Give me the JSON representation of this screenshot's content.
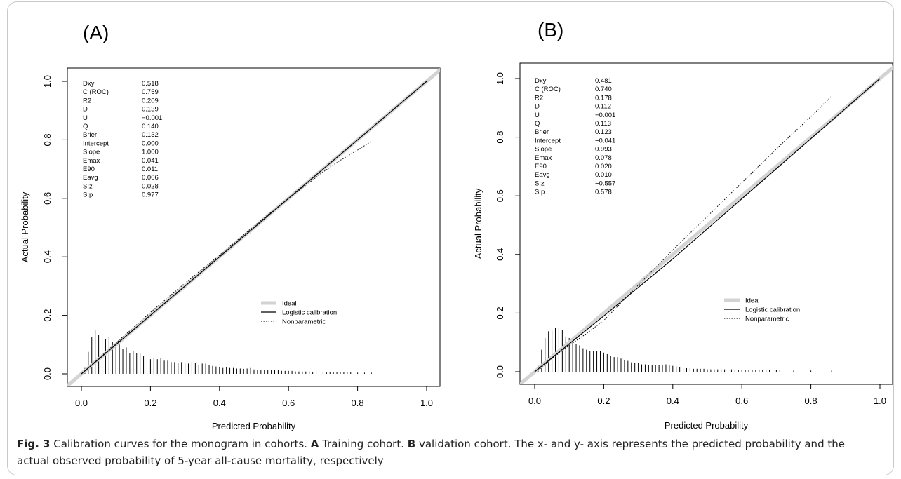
{
  "figure": {
    "caption_prefix": "Fig. 3",
    "caption_segments": [
      {
        "text": " Calibration curves for the monogram in cohorts. ",
        "bold": false
      },
      {
        "text": "A",
        "bold": true
      },
      {
        "text": " Training cohort. ",
        "bold": false
      },
      {
        "text": "B",
        "bold": true
      },
      {
        "text": " validation cohort. The x- and y- axis represents the predicted probability and the actual observed probability of 5-year all-cause mortality, respectively",
        "bold": false
      }
    ]
  },
  "colors": {
    "ideal": "#d3d3d3",
    "logistic": "#000000",
    "nonparametric": "#000000",
    "frame": "#000000"
  },
  "chart_data": [
    {
      "panel_label": "(A)",
      "type": "line",
      "xlabel": "Predicted Probability",
      "ylabel": "Actual Probability",
      "xlim": [
        0.0,
        1.0
      ],
      "ylim": [
        0.0,
        1.0
      ],
      "xticks": [
        "0.0",
        "0.2",
        "0.4",
        "0.6",
        "0.8",
        "1.0"
      ],
      "yticks": [
        "0.0",
        "0.2",
        "0.4",
        "0.6",
        "0.8",
        "1.0"
      ],
      "legend": {
        "position": "bottom-right",
        "entries": [
          "Ideal",
          "Logistic calibration",
          "Nonparametric"
        ]
      },
      "stats": [
        {
          "label": "Dxy",
          "value": "0.518"
        },
        {
          "label": "C (ROC)",
          "value": "0.759"
        },
        {
          "label": "R2",
          "value": "0.209"
        },
        {
          "label": "D",
          "value": "0.139"
        },
        {
          "label": "U",
          "value": "−0.001"
        },
        {
          "label": "Q",
          "value": "0.140"
        },
        {
          "label": "Brier",
          "value": "0.132"
        },
        {
          "label": "Intercept",
          "value": "0.000"
        },
        {
          "label": "Slope",
          "value": "1.000"
        },
        {
          "label": "Emax",
          "value": "0.041"
        },
        {
          "label": "E90",
          "value": "0.011"
        },
        {
          "label": "Eavg",
          "value": "0.006"
        },
        {
          "label": "S:z",
          "value": "0.028"
        },
        {
          "label": "S:p",
          "value": "0.977"
        }
      ],
      "series": [
        {
          "name": "Ideal",
          "x": [
            0.0,
            1.0
          ],
          "y": [
            0.0,
            1.0
          ]
        },
        {
          "name": "Logistic calibration",
          "x": [
            0.0,
            1.0
          ],
          "y": [
            0.0,
            1.0
          ]
        },
        {
          "name": "Nonparametric",
          "x": [
            0.01,
            0.1,
            0.2,
            0.3,
            0.4,
            0.5,
            0.6,
            0.7,
            0.75,
            0.8,
            0.84
          ],
          "y": [
            0.01,
            0.105,
            0.21,
            0.31,
            0.405,
            0.505,
            0.6,
            0.69,
            0.73,
            0.765,
            0.795
          ]
        }
      ],
      "histogram": {
        "x": [
          0.01,
          0.02,
          0.03,
          0.04,
          0.05,
          0.06,
          0.07,
          0.08,
          0.09,
          0.1,
          0.11,
          0.12,
          0.13,
          0.14,
          0.15,
          0.16,
          0.17,
          0.18,
          0.19,
          0.2,
          0.21,
          0.22,
          0.23,
          0.24,
          0.25,
          0.26,
          0.27,
          0.28,
          0.29,
          0.3,
          0.31,
          0.32,
          0.33,
          0.34,
          0.35,
          0.36,
          0.37,
          0.38,
          0.39,
          0.4,
          0.41,
          0.42,
          0.43,
          0.44,
          0.45,
          0.46,
          0.47,
          0.48,
          0.49,
          0.5,
          0.51,
          0.52,
          0.53,
          0.54,
          0.55,
          0.56,
          0.57,
          0.58,
          0.59,
          0.6,
          0.61,
          0.62,
          0.63,
          0.64,
          0.65,
          0.66,
          0.67,
          0.68,
          0.7,
          0.71,
          0.72,
          0.73,
          0.74,
          0.75,
          0.76,
          0.77,
          0.78,
          0.8,
          0.82,
          0.84
        ],
        "y": [
          0.02,
          0.075,
          0.125,
          0.15,
          0.133,
          0.13,
          0.12,
          0.125,
          0.11,
          0.105,
          0.1,
          0.085,
          0.09,
          0.07,
          0.078,
          0.07,
          0.07,
          0.062,
          0.055,
          0.05,
          0.055,
          0.05,
          0.055,
          0.045,
          0.045,
          0.04,
          0.04,
          0.037,
          0.04,
          0.038,
          0.035,
          0.04,
          0.036,
          0.03,
          0.035,
          0.035,
          0.03,
          0.027,
          0.025,
          0.022,
          0.02,
          0.022,
          0.02,
          0.02,
          0.018,
          0.018,
          0.017,
          0.018,
          0.02,
          0.015,
          0.012,
          0.013,
          0.012,
          0.013,
          0.012,
          0.012,
          0.012,
          0.01,
          0.01,
          0.01,
          0.01,
          0.008,
          0.008,
          0.008,
          0.008,
          0.008,
          0.006,
          0.006,
          0.008,
          0.006,
          0.006,
          0.006,
          0.006,
          0.006,
          0.006,
          0.006,
          0.006,
          0.004,
          0.004,
          0.004
        ]
      }
    },
    {
      "panel_label": "(B)",
      "type": "line",
      "xlabel": "Predicted Probability",
      "ylabel": "Actual Probability",
      "xlim": [
        0.0,
        1.0
      ],
      "ylim": [
        0.0,
        1.0
      ],
      "xticks": [
        "0.0",
        "0.2",
        "0.4",
        "0.6",
        "0.8",
        "1.0"
      ],
      "yticks": [
        "0.0",
        "0.2",
        "0.4",
        "0.6",
        "0.8",
        "1.0"
      ],
      "legend": {
        "position": "bottom-right",
        "entries": [
          "Ideal",
          "Logistic calibration",
          "Nonparametric"
        ]
      },
      "stats": [
        {
          "label": "Dxy",
          "value": "0.481"
        },
        {
          "label": "C (ROC)",
          "value": "0.740"
        },
        {
          "label": "R2",
          "value": "0.178"
        },
        {
          "label": "D",
          "value": "0.112"
        },
        {
          "label": "U",
          "value": "−0.001"
        },
        {
          "label": "Q",
          "value": "0.113"
        },
        {
          "label": "Brier",
          "value": "0.123"
        },
        {
          "label": "Intercept",
          "value": "−0.041"
        },
        {
          "label": "Slope",
          "value": "0.993"
        },
        {
          "label": "Emax",
          "value": "0.078"
        },
        {
          "label": "E90",
          "value": "0.020"
        },
        {
          "label": "Eavg",
          "value": "0.010"
        },
        {
          "label": "S:z",
          "value": "−0.557"
        },
        {
          "label": "S:p",
          "value": "0.578"
        }
      ],
      "series": [
        {
          "name": "Ideal",
          "x": [
            0.0,
            1.0
          ],
          "y": [
            0.0,
            1.0
          ]
        },
        {
          "name": "Logistic calibration",
          "x": [
            0.0,
            0.2,
            0.4,
            0.6,
            0.8,
            1.0
          ],
          "y": [
            0.0,
            0.19,
            0.385,
            0.59,
            0.795,
            1.0
          ]
        },
        {
          "name": "Nonparametric",
          "x": [
            0.01,
            0.05,
            0.1,
            0.15,
            0.2,
            0.3,
            0.4,
            0.5,
            0.6,
            0.7,
            0.8,
            0.86
          ],
          "y": [
            0.005,
            0.045,
            0.09,
            0.13,
            0.175,
            0.295,
            0.415,
            0.53,
            0.645,
            0.76,
            0.87,
            0.94
          ]
        }
      ],
      "histogram": {
        "x": [
          0.01,
          0.02,
          0.03,
          0.04,
          0.05,
          0.06,
          0.07,
          0.08,
          0.09,
          0.1,
          0.11,
          0.12,
          0.13,
          0.14,
          0.15,
          0.16,
          0.17,
          0.18,
          0.19,
          0.2,
          0.21,
          0.22,
          0.23,
          0.24,
          0.25,
          0.26,
          0.27,
          0.28,
          0.29,
          0.3,
          0.31,
          0.32,
          0.33,
          0.34,
          0.35,
          0.36,
          0.37,
          0.38,
          0.39,
          0.4,
          0.41,
          0.42,
          0.43,
          0.44,
          0.45,
          0.46,
          0.47,
          0.48,
          0.49,
          0.5,
          0.51,
          0.52,
          0.53,
          0.54,
          0.55,
          0.56,
          0.57,
          0.58,
          0.59,
          0.6,
          0.61,
          0.62,
          0.63,
          0.64,
          0.65,
          0.66,
          0.67,
          0.68,
          0.7,
          0.71,
          0.75,
          0.8,
          0.86
        ],
        "y": [
          0.02,
          0.075,
          0.115,
          0.138,
          0.14,
          0.15,
          0.148,
          0.143,
          0.12,
          0.115,
          0.1,
          0.095,
          0.09,
          0.08,
          0.075,
          0.07,
          0.07,
          0.07,
          0.07,
          0.065,
          0.06,
          0.055,
          0.05,
          0.05,
          0.045,
          0.04,
          0.037,
          0.032,
          0.03,
          0.03,
          0.025,
          0.025,
          0.022,
          0.022,
          0.022,
          0.022,
          0.022,
          0.025,
          0.022,
          0.02,
          0.018,
          0.015,
          0.012,
          0.012,
          0.012,
          0.01,
          0.01,
          0.01,
          0.01,
          0.008,
          0.008,
          0.008,
          0.008,
          0.008,
          0.008,
          0.008,
          0.008,
          0.006,
          0.006,
          0.006,
          0.006,
          0.006,
          0.005,
          0.005,
          0.005,
          0.005,
          0.005,
          0.005,
          0.005,
          0.005,
          0.004,
          0.004,
          0.004
        ]
      }
    }
  ]
}
